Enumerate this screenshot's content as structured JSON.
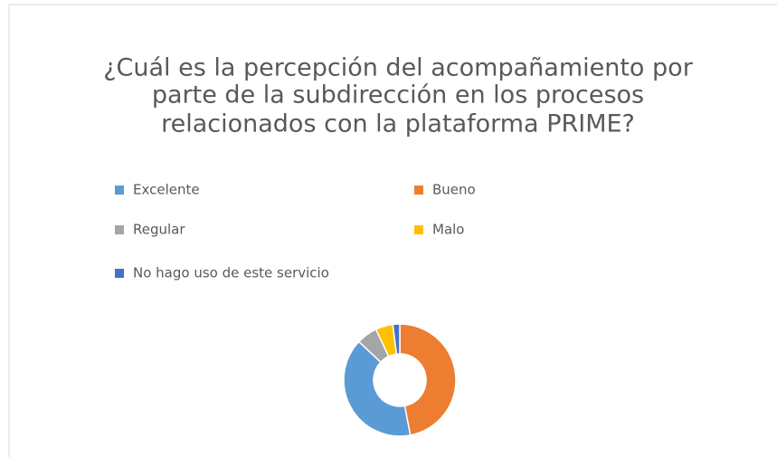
{
  "chart_data": {
    "type": "donut",
    "title": [
      "¿Cuál es la percepción del acompañamiento por",
      "parte de la subdirección en los procesos",
      "relacionados con la plataforma PRIME?"
    ],
    "categories": [
      "Excelente",
      "Bueno",
      "Regular",
      "Malo",
      "No hago uso de este servicio"
    ],
    "values": [
      40,
      47,
      6,
      5,
      2
    ],
    "colors": [
      "#5b9bd5",
      "#ed7d31",
      "#a5a5a5",
      "#ffc000",
      "#4472c4"
    ]
  }
}
